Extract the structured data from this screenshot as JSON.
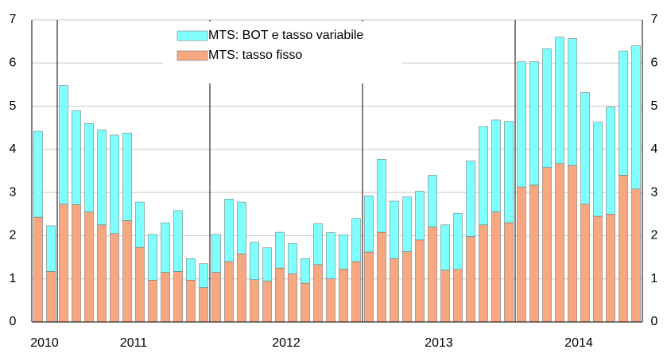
{
  "chart_data": {
    "type": "stacked_bar",
    "categories": [
      "2010",
      null,
      "2011",
      null,
      null,
      null,
      null,
      null,
      null,
      null,
      null,
      null,
      null,
      null,
      "2012",
      null,
      null,
      null,
      null,
      null,
      null,
      null,
      null,
      null,
      null,
      null,
      "2013",
      null,
      null,
      null,
      null,
      null,
      null,
      null,
      null,
      null,
      null,
      null,
      "2014",
      null,
      null,
      null,
      null,
      null,
      null,
      null,
      null,
      null
    ],
    "series": [
      {
        "name": "MTS: tasso fisso",
        "color": "#f7a880",
        "values": [
          2.43,
          1.17,
          2.73,
          2.72,
          2.55,
          2.25,
          2.05,
          2.35,
          1.73,
          0.97,
          1.15,
          1.17,
          0.97,
          0.8,
          1.15,
          1.4,
          1.58,
          0.98,
          0.95,
          1.25,
          1.12,
          0.9,
          1.33,
          1.0,
          1.23,
          1.4,
          1.62,
          2.08,
          1.47,
          1.63,
          1.9,
          2.2,
          1.2,
          1.22,
          1.98,
          2.25,
          2.55,
          2.3,
          3.13,
          3.17,
          3.58,
          3.67,
          3.63,
          2.73,
          2.45,
          2.5,
          3.4,
          3.08
        ]
      },
      {
        "name": "MTS: BOT e tasso variabile",
        "color": "#80ffff",
        "values": [
          1.99,
          1.06,
          2.75,
          2.18,
          2.05,
          2.2,
          2.28,
          2.03,
          1.05,
          1.06,
          1.15,
          1.41,
          0.5,
          0.55,
          0.88,
          1.45,
          1.2,
          0.87,
          0.77,
          0.83,
          0.7,
          0.57,
          0.95,
          1.07,
          0.79,
          1.0,
          1.3,
          1.69,
          1.33,
          1.27,
          1.13,
          1.2,
          1.05,
          1.3,
          1.75,
          2.28,
          2.13,
          2.35,
          2.9,
          2.86,
          2.75,
          2.93,
          2.94,
          2.59,
          2.18,
          2.48,
          2.88,
          3.32
        ]
      }
    ],
    "ylim": [
      0,
      7
    ],
    "yticks": [
      0,
      1,
      2,
      3,
      4,
      5,
      6,
      7
    ],
    "y2lim": [
      0,
      7
    ],
    "y2ticks": [
      0,
      1,
      2,
      3,
      4,
      5,
      6,
      7
    ],
    "grid": true
  }
}
